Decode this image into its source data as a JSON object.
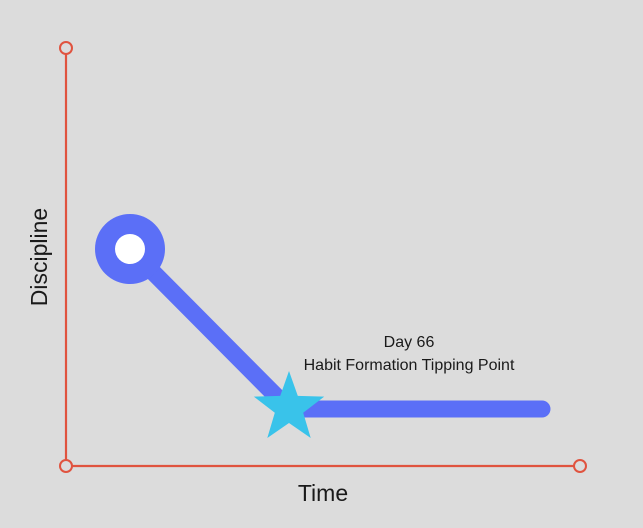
{
  "colors": {
    "background": "#dcdcdc",
    "axis": "#e0533f",
    "line": "#5b6ff7",
    "marker_fill": "#ffffff",
    "star": "#39c3ea",
    "text": "#1a1a1a"
  },
  "y_axis_title": "Discipline",
  "x_axis_title": "Time",
  "annotation": {
    "line1": "Day 66",
    "line2": "Habit Formation Tipping Point"
  },
  "icons": {
    "start_marker": "ring-dot-icon",
    "milestone_marker": "star-icon",
    "axis_end_caps": "circle-cap-icon"
  }
}
